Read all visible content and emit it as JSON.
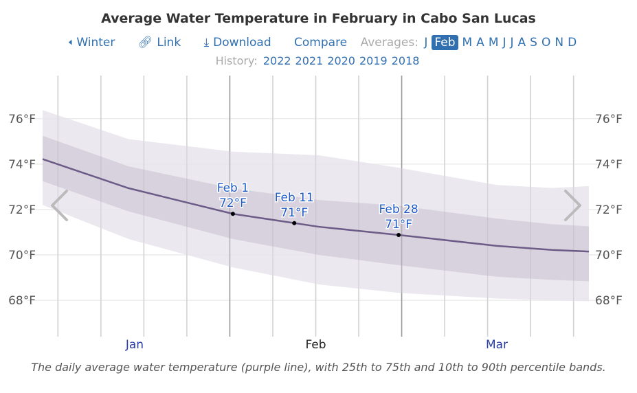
{
  "title": "Average Water Temperature in February in Cabo San Lucas",
  "nav": {
    "back": "Winter",
    "link": "Link",
    "download": "Download",
    "compare": "Compare",
    "averages_label": "Averages:",
    "months": [
      "J",
      "Feb",
      "M",
      "A",
      "M",
      "J",
      "J",
      "A",
      "S",
      "O",
      "N",
      "D"
    ],
    "selected_month": "Feb",
    "back_icon": "arrow-left-icon",
    "link_icon": "link-icon",
    "download_icon": "download-icon"
  },
  "history": {
    "label": "History:",
    "years": [
      "2022",
      "2021",
      "2020",
      "2019",
      "2018"
    ]
  },
  "caption": "The daily average water temperature (purple line), with 25th to 75th and 10th to 90th percentile bands.",
  "chart_data": {
    "type": "area",
    "x_unit": "day of year",
    "xlim": [
      1,
      90
    ],
    "ylim": [
      66.4,
      77.9
    ],
    "y_ticks": [
      76,
      74,
      72,
      70,
      68
    ],
    "y_tick_labels": [
      "76°F",
      "74°F",
      "72°F",
      "70°F",
      "68°F"
    ],
    "x_month_labels": [
      "Jan",
      "Feb",
      "Mar"
    ],
    "highlight_month": "Feb",
    "grid": true,
    "colors": {
      "line": "#6b5b86",
      "band_25_75": "#d4ceda",
      "band_10_90": "#e7e4ec",
      "label": "#1f5bc6"
    },
    "x": [
      1,
      15,
      32,
      46,
      59,
      75,
      84,
      90
    ],
    "series": [
      {
        "name": "average",
        "values": [
          74.22,
          72.94,
          71.81,
          71.24,
          70.88,
          70.4,
          70.22,
          70.15
        ]
      },
      {
        "name": "p25",
        "values": [
          73.25,
          71.92,
          70.7,
          70.0,
          69.55,
          69.04,
          68.9,
          68.84
        ]
      },
      {
        "name": "p75",
        "values": [
          75.25,
          73.9,
          72.93,
          72.42,
          72.17,
          71.6,
          71.35,
          71.26
        ]
      },
      {
        "name": "p10",
        "values": [
          72.2,
          70.7,
          69.45,
          68.7,
          68.33,
          68.08,
          68.0,
          67.96
        ]
      },
      {
        "name": "p90",
        "values": [
          76.38,
          75.1,
          74.55,
          74.39,
          73.84,
          73.08,
          72.95,
          73.03
        ]
      }
    ],
    "annotations": [
      {
        "day": 32,
        "value": 71.81,
        "label": "Feb 1",
        "value_label": "72°F"
      },
      {
        "day": 42,
        "value": 71.4,
        "label": "Feb 11",
        "value_label": "71°F"
      },
      {
        "day": 59,
        "value": 70.88,
        "label": "Feb 28",
        "value_label": "71°F"
      }
    ]
  }
}
